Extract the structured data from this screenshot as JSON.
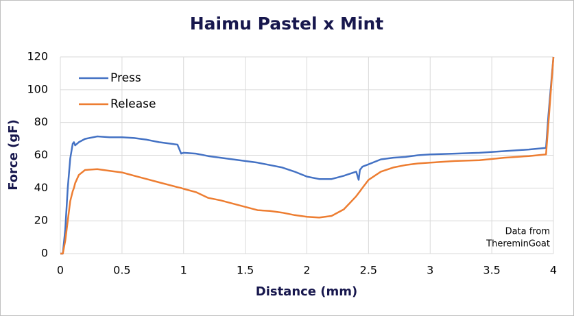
{
  "chart_data": {
    "type": "line",
    "title": "Haimu Pastel x Mint",
    "xlabel": "Distance (mm)",
    "ylabel": "Force (gF)",
    "annotation": [
      "Data from",
      "ThereminGoat"
    ],
    "x": [
      0,
      0.02,
      0.04,
      0.06,
      0.08,
      0.1,
      0.11,
      0.12,
      0.15,
      0.2,
      0.3,
      0.4,
      0.5,
      0.6,
      0.7,
      0.8,
      0.9,
      0.95,
      0.98,
      1.0,
      1.1,
      1.2,
      1.3,
      1.4,
      1.5,
      1.6,
      1.7,
      1.8,
      1.9,
      2.0,
      2.1,
      2.2,
      2.3,
      2.4,
      2.42,
      2.43,
      2.45,
      2.5,
      2.6,
      2.7,
      2.8,
      2.9,
      3.0,
      3.2,
      3.4,
      3.6,
      3.8,
      3.94,
      3.96,
      4.0
    ],
    "series": [
      {
        "name": "Press",
        "color": "#4472c4",
        "values": [
          0,
          0,
          15,
          40,
          58,
          67,
          68,
          66,
          68,
          70,
          71.5,
          71,
          71,
          70.5,
          69.5,
          68,
          67,
          66.5,
          61,
          61.5,
          61,
          59.5,
          58.5,
          57.5,
          56.5,
          55.5,
          54,
          52.5,
          50,
          47,
          45.5,
          45.5,
          47.5,
          50,
          45,
          51,
          53,
          54.5,
          57.5,
          58.5,
          59,
          60,
          60.5,
          61,
          61.5,
          62.5,
          63.5,
          64.5,
          85,
          120
        ]
      },
      {
        "name": "Release",
        "color": "#ed7d31",
        "values": [
          0,
          0,
          8,
          20,
          32,
          38,
          40,
          43,
          48,
          51,
          51.5,
          50.5,
          49.5,
          47.5,
          45.5,
          43.5,
          41.5,
          40.5,
          40,
          39.5,
          37.5,
          34,
          32.5,
          30.5,
          28.5,
          26.5,
          26,
          25,
          23.5,
          22.5,
          22,
          23,
          27,
          35,
          37,
          38,
          40,
          45,
          50,
          52.5,
          54,
          55,
          55.5,
          56.5,
          57,
          58.5,
          59.5,
          60.5,
          80,
          120
        ]
      }
    ],
    "xlim": [
      0,
      4
    ],
    "xticks": [
      0,
      0.5,
      1,
      1.5,
      2,
      2.5,
      3,
      3.5,
      4
    ],
    "ylim": [
      0,
      120
    ],
    "yticks": [
      0,
      20,
      40,
      60,
      80,
      100,
      120
    ],
    "grid": true,
    "legend": "upper-left"
  }
}
